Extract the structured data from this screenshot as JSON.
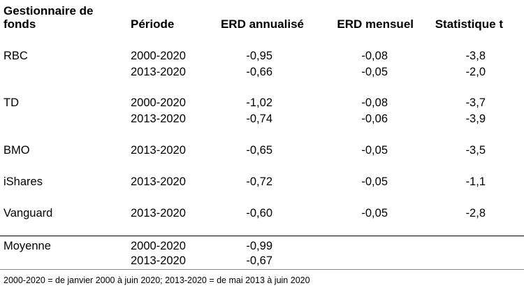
{
  "headers": {
    "manager_line1": "Gestionnaire de",
    "manager_line2": "fonds",
    "period": "Période",
    "erd_annual": "ERD annualisé",
    "erd_monthly": "ERD mensuel",
    "tstat": "Statistique t"
  },
  "rows": [
    {
      "manager": "RBC",
      "period": "2000-2020",
      "erd_annual": "-0,95",
      "erd_monthly": "-0,08",
      "tstat": "-3,8"
    },
    {
      "manager": "",
      "period": "2013-2020",
      "erd_annual": "-0,66",
      "erd_monthly": "-0,05",
      "tstat": "-2,0"
    },
    {
      "manager": "TD",
      "period": "2000-2020",
      "erd_annual": "-1,02",
      "erd_monthly": "-0,08",
      "tstat": "-3,7"
    },
    {
      "manager": "",
      "period": "2013-2020",
      "erd_annual": "-0,74",
      "erd_monthly": "-0,06",
      "tstat": "-3,9"
    },
    {
      "manager": "BMO",
      "period": "2013-2020",
      "erd_annual": "-0,65",
      "erd_monthly": "-0,05",
      "tstat": "-3,5"
    },
    {
      "manager": "iShares",
      "period": "2013-2020",
      "erd_annual": "-0,72",
      "erd_monthly": "-0,05",
      "tstat": "-1,1"
    },
    {
      "manager": "Vanguard",
      "period": "2013-2020",
      "erd_annual": "-0,60",
      "erd_monthly": "-0,05",
      "tstat": "-2,8"
    },
    {
      "manager": "Moyenne",
      "period": "2000-2020",
      "erd_annual": "-0,99",
      "erd_monthly": "",
      "tstat": ""
    },
    {
      "manager": "",
      "period": "2013-2020",
      "erd_annual": "-0,67",
      "erd_monthly": "",
      "tstat": ""
    }
  ],
  "footnote": "2000-2020 = de janvier 2000 à juin 2020; 2013-2020 = de mai 2013 à juin 2020"
}
